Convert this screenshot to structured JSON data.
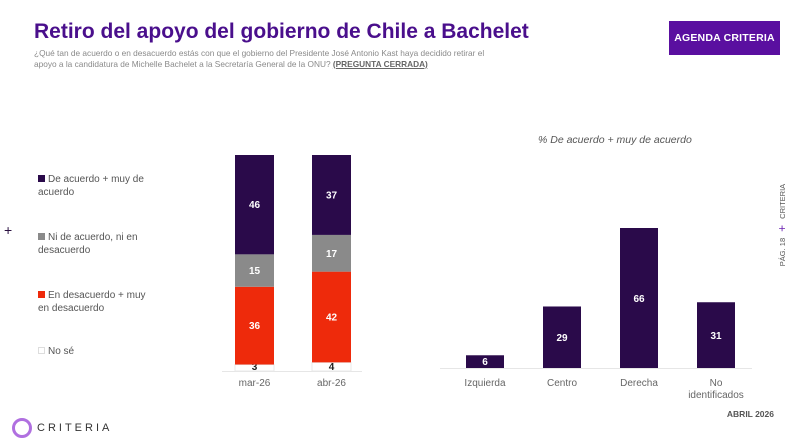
{
  "header": {
    "title": "Retiro del apoyo del gobierno de Chile a Bachelet",
    "question": "¿Qué tan de acuerdo o en desacuerdo estás con que el gobierno del Presidente José Antonio Kast haya decidido retirar el apoyo a la candidatura de Michelle Bachelet a la Secretaría General de la ONU?",
    "question_tag": "(PREGUNTA CERRADA)",
    "agenda_button": "AGENDA CRITERIA"
  },
  "side": {
    "page": "PÁG. 18",
    "brand": "CRITERIA"
  },
  "footer": {
    "date": "ABRIL 2026",
    "logo_text": "CRITERIA"
  },
  "colors": {
    "de_acuerdo": "#2a0a4a",
    "ni": "#8a8a8a",
    "desacuerdo": "#ee2a0b",
    "no_se": "#ffffff",
    "accent": "#5a0fa0"
  },
  "chart_data": [
    {
      "type": "bar",
      "stacked": true,
      "categories": [
        "mar-26",
        "abr-26"
      ],
      "series": [
        {
          "name": "De acuerdo + muy de acuerdo",
          "values": [
            46,
            37
          ]
        },
        {
          "name": "Ni de acuerdo, ni en desacuerdo",
          "values": [
            15,
            17
          ]
        },
        {
          "name": "En desacuerdo + muy en desacuerdo",
          "values": [
            36,
            42
          ]
        },
        {
          "name": "No sé",
          "values": [
            3,
            4
          ]
        }
      ],
      "legend": "left",
      "ylim": [
        0,
        100
      ]
    },
    {
      "type": "bar",
      "title": "% De acuerdo + muy de acuerdo",
      "categories": [
        "Izquierda",
        "Centro",
        "Derecha",
        "No identificados"
      ],
      "values": [
        6,
        29,
        66,
        31
      ]
    }
  ]
}
